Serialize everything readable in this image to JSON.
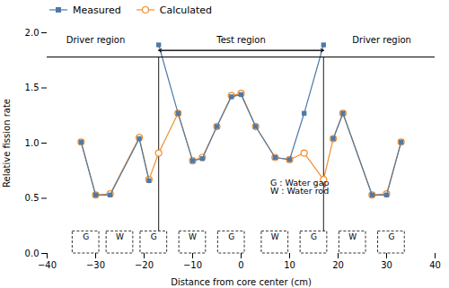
{
  "chart_data": {
    "type": "line",
    "xlabel": "Distance from core center (cm)",
    "ylabel": "Relative fission rate",
    "xlim": [
      -40,
      40
    ],
    "ylim": [
      0.0,
      2.0
    ],
    "xticks": [
      -40,
      -30,
      -20,
      -10,
      0,
      10,
      20,
      30,
      40
    ],
    "yticks": [
      {
        "value": 0,
        "label": "0.0"
      },
      0.5,
      {
        "value": 1,
        "label": "1.0"
      },
      1.5,
      {
        "value": 2,
        "label": "2.0"
      }
    ],
    "grid": false,
    "legend": "top",
    "series": [
      {
        "name": "Measured",
        "marker": "square",
        "segments": [
          {
            "x": [
              -33,
              -30,
              -27,
              -21,
              -19
            ],
            "values": [
              1.01,
              0.53,
              0.53,
              1.04,
              0.66
            ]
          },
          {
            "x": [
              -17,
              -13,
              -10,
              -8,
              -5,
              -2,
              0,
              3,
              7,
              10,
              13,
              17
            ],
            "values": [
              1.89,
              1.27,
              0.84,
              0.86,
              1.15,
              1.42,
              1.44,
              1.15,
              0.87,
              0.85,
              1.27,
              1.89
            ]
          },
          {
            "x": [
              19,
              21,
              27,
              30,
              33
            ],
            "values": [
              1.04,
              1.27,
              0.53,
              0.53,
              1.01
            ]
          }
        ]
      },
      {
        "name": "Calculated",
        "marker": "circle",
        "x": [
          -33,
          -30,
          -27,
          -21,
          -19,
          -17,
          -13,
          -10,
          -8,
          -5,
          -2,
          0,
          3,
          7,
          10,
          13,
          17,
          19,
          21,
          27,
          30,
          33
        ],
        "values": [
          1.01,
          0.53,
          0.54,
          1.05,
          0.67,
          0.91,
          1.27,
          0.84,
          0.87,
          1.15,
          1.43,
          1.45,
          1.15,
          0.87,
          0.85,
          0.91,
          0.67,
          1.04,
          1.27,
          0.53,
          0.54,
          1.01
        ]
      }
    ],
    "boundary_line_y": 1.78,
    "boundary_x": [
      -17,
      17
    ],
    "arrow_y": 1.84,
    "region_labels": [
      {
        "text": "Driver region",
        "x": -30,
        "y": 1.91
      },
      {
        "text": "Test region",
        "x": 0,
        "y": 1.91
      },
      {
        "text": "Driver region",
        "x": 29,
        "y": 1.91
      }
    ],
    "annotations": [
      {
        "text": "G : Water gap\nW : Water rod",
        "x": 6,
        "y": 0.6
      }
    ],
    "boxes": {
      "labels": [
        "G",
        "W",
        "G",
        "W",
        "G",
        "W",
        "G",
        "W",
        "G"
      ],
      "x": [
        -32,
        -25,
        -18,
        -10,
        -2,
        7,
        15,
        23,
        31
      ],
      "width": 5.5,
      "y_bottom": 0.0,
      "y_top": 0.2
    }
  }
}
